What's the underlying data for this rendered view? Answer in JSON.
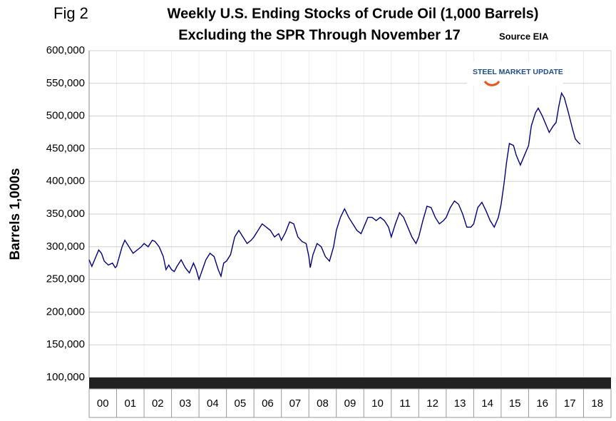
{
  "chart_data": {
    "type": "line",
    "figure_label": "Fig 2",
    "title": "Weekly U.S. Ending Stocks of Crude Oil  (1,000 Barrels)",
    "subtitle": "Excluding the SPR Through November 17",
    "source": "Source EIA",
    "logo": "STEEL MARKET UPDATE",
    "y_label": "Barrels 1,000s",
    "color": "#000080",
    "grid": true,
    "xlim": [
      0,
      19
    ],
    "xticks": [
      {
        "value": 0.5,
        "label": "00"
      },
      {
        "value": 1.5,
        "label": "01"
      },
      {
        "value": 2.5,
        "label": "02"
      },
      {
        "value": 3.5,
        "label": "03"
      },
      {
        "value": 4.5,
        "label": "04"
      },
      {
        "value": 5.5,
        "label": "05"
      },
      {
        "value": 6.5,
        "label": "06"
      },
      {
        "value": 7.5,
        "label": "07"
      },
      {
        "value": 8.5,
        "label": "08"
      },
      {
        "value": 9.5,
        "label": "09"
      },
      {
        "value": 10.5,
        "label": "10"
      },
      {
        "value": 11.5,
        "label": "11"
      },
      {
        "value": 12.5,
        "label": "12"
      },
      {
        "value": 13.5,
        "label": "13"
      },
      {
        "value": 14.5,
        "label": "14"
      },
      {
        "value": 15.5,
        "label": "15"
      },
      {
        "value": 16.5,
        "label": "16"
      },
      {
        "value": 17.5,
        "label": "17"
      },
      {
        "value": 18.5,
        "label": "18"
      }
    ],
    "ylim": [
      100000,
      600000
    ],
    "yticks": [
      {
        "value": 100000,
        "label": "100,000"
      },
      {
        "value": 150000,
        "label": "150,000"
      },
      {
        "value": 200000,
        "label": "200,000"
      },
      {
        "value": 250000,
        "label": "250,000"
      },
      {
        "value": 300000,
        "label": "300,000"
      },
      {
        "value": 350000,
        "label": "350,000"
      },
      {
        "value": 400000,
        "label": "400,000"
      },
      {
        "value": 450000,
        "label": "450,000"
      },
      {
        "value": 500000,
        "label": "500,000"
      },
      {
        "value": 550000,
        "label": "550,000"
      },
      {
        "value": 600000,
        "label": "600,000"
      }
    ],
    "x": [
      0,
      0.1,
      0.25,
      0.35,
      0.45,
      0.55,
      0.7,
      0.85,
      0.95,
      1.0,
      1.1,
      1.2,
      1.3,
      1.45,
      1.6,
      1.75,
      1.9,
      2.0,
      2.15,
      2.3,
      2.4,
      2.55,
      2.7,
      2.8,
      2.9,
      3.0,
      3.1,
      3.2,
      3.35,
      3.5,
      3.65,
      3.8,
      3.9,
      4.0,
      4.1,
      4.25,
      4.4,
      4.55,
      4.7,
      4.8,
      4.9,
      5.0,
      5.15,
      5.3,
      5.45,
      5.6,
      5.75,
      5.9,
      6.0,
      6.15,
      6.3,
      6.45,
      6.6,
      6.75,
      6.9,
      7.0,
      7.15,
      7.3,
      7.45,
      7.6,
      7.75,
      7.9,
      8.0,
      8.05,
      8.15,
      8.3,
      8.45,
      8.6,
      8.75,
      8.9,
      9.0,
      9.15,
      9.3,
      9.45,
      9.6,
      9.75,
      9.9,
      10.0,
      10.15,
      10.3,
      10.45,
      10.6,
      10.75,
      10.9,
      11.0,
      11.15,
      11.3,
      11.45,
      11.6,
      11.75,
      11.9,
      12.0,
      12.15,
      12.3,
      12.45,
      12.6,
      12.75,
      12.9,
      13.0,
      13.15,
      13.3,
      13.45,
      13.6,
      13.75,
      13.9,
      14.0,
      14.15,
      14.3,
      14.45,
      14.6,
      14.75,
      14.9,
      15.0,
      15.1,
      15.2,
      15.3,
      15.45,
      15.55,
      15.7,
      15.85,
      15.95,
      16.0,
      16.1,
      16.25,
      16.35,
      16.5,
      16.65,
      16.75,
      16.9,
      17.0,
      17.1,
      17.2,
      17.3,
      17.45,
      17.6,
      17.7,
      17.8,
      17.88
    ],
    "values": [
      280000,
      270000,
      285000,
      295000,
      290000,
      278000,
      272000,
      275000,
      268000,
      270000,
      285000,
      300000,
      310000,
      300000,
      290000,
      295000,
      300000,
      305000,
      300000,
      310000,
      308000,
      300000,
      285000,
      265000,
      272000,
      265000,
      262000,
      270000,
      280000,
      268000,
      260000,
      275000,
      265000,
      250000,
      262000,
      280000,
      290000,
      285000,
      265000,
      255000,
      275000,
      278000,
      288000,
      315000,
      325000,
      315000,
      305000,
      310000,
      315000,
      325000,
      335000,
      330000,
      325000,
      315000,
      320000,
      310000,
      322000,
      338000,
      335000,
      315000,
      308000,
      305000,
      285000,
      268000,
      288000,
      305000,
      300000,
      285000,
      278000,
      300000,
      325000,
      345000,
      358000,
      345000,
      335000,
      325000,
      320000,
      330000,
      345000,
      345000,
      340000,
      345000,
      340000,
      330000,
      315000,
      335000,
      352000,
      345000,
      330000,
      315000,
      305000,
      315000,
      340000,
      362000,
      360000,
      345000,
      335000,
      340000,
      345000,
      360000,
      370000,
      365000,
      350000,
      330000,
      330000,
      335000,
      360000,
      368000,
      355000,
      340000,
      330000,
      345000,
      365000,
      395000,
      430000,
      458000,
      455000,
      440000,
      425000,
      440000,
      450000,
      455000,
      485000,
      505000,
      512000,
      500000,
      485000,
      475000,
      485000,
      490000,
      515000,
      535000,
      528000,
      505000,
      480000,
      465000,
      460000,
      457000
    ]
  }
}
